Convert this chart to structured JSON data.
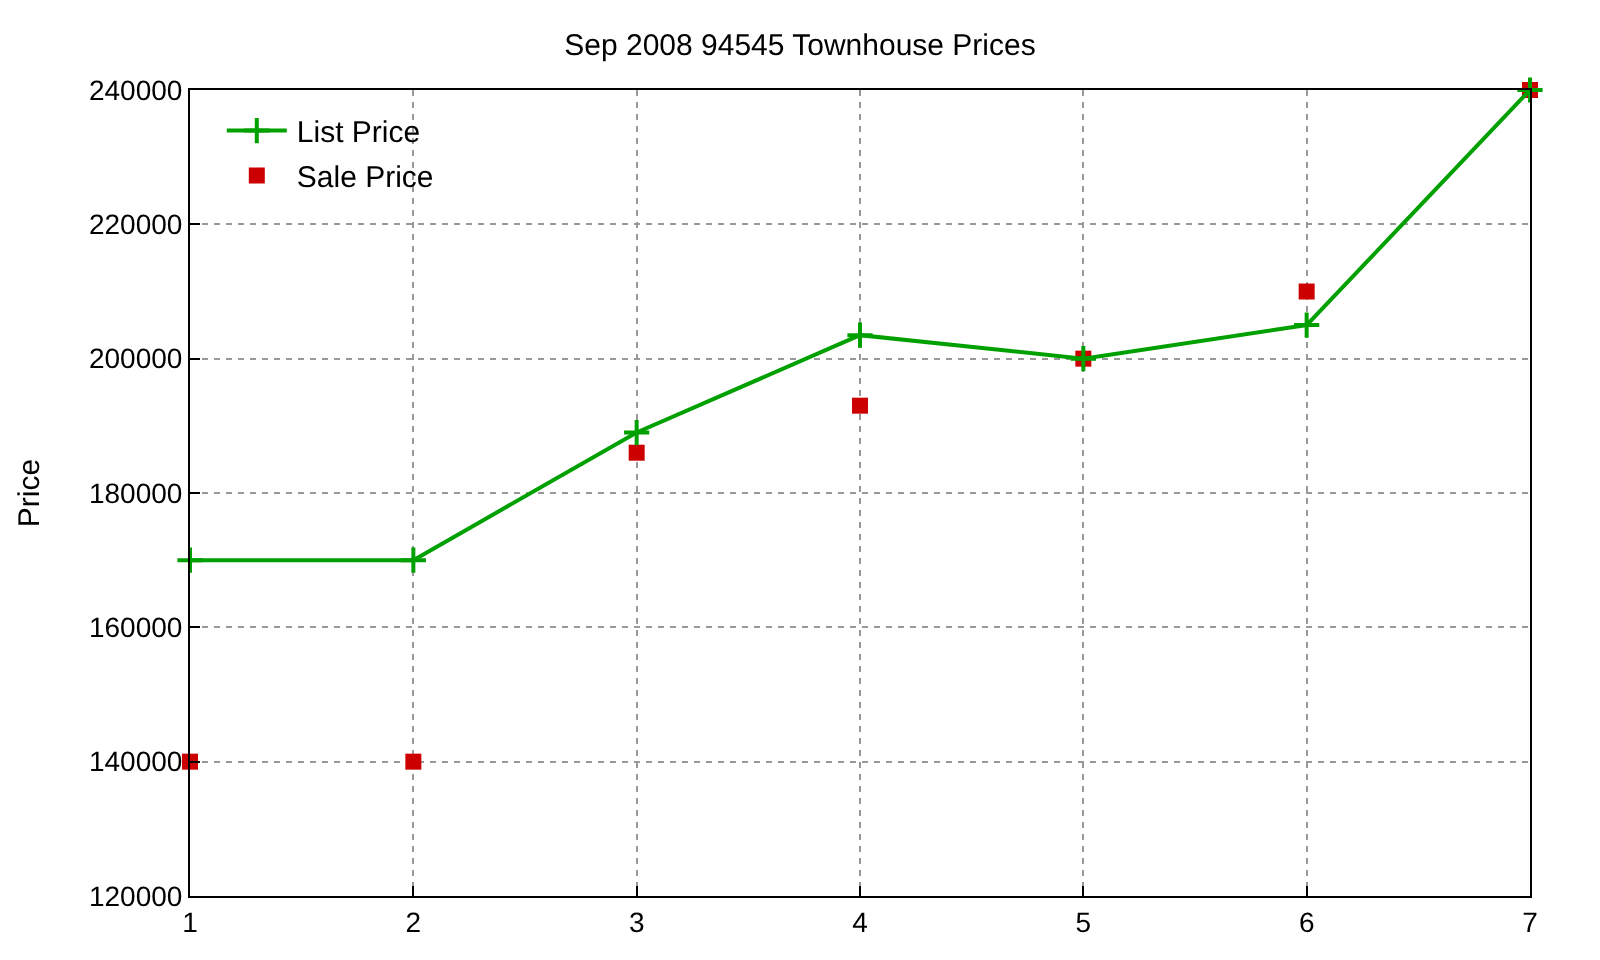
{
  "chart_data": {
    "type": "line",
    "title": "Sep 2008 94545 Townhouse Prices",
    "ylabel": "Price",
    "x": [
      1,
      2,
      3,
      4,
      5,
      6,
      7
    ],
    "series": [
      {
        "name": "List Price",
        "color": "#00a000",
        "marker": "cross",
        "values": [
          170000,
          170000,
          189000,
          203500,
          200000,
          205000,
          240000
        ]
      },
      {
        "name": "Sale Price",
        "type": "scatter",
        "color": "#cc0000",
        "marker": "square",
        "values": [
          140000,
          140000,
          186000,
          193000,
          200000,
          210000,
          240000
        ]
      }
    ],
    "xlim": [
      1,
      7
    ],
    "xticks": [
      1,
      2,
      3,
      4,
      5,
      6,
      7
    ],
    "ylim": [
      120000,
      240000
    ],
    "yticks": [
      120000,
      140000,
      160000,
      180000,
      200000,
      220000,
      240000
    ],
    "grid": true,
    "legend": "top left"
  }
}
